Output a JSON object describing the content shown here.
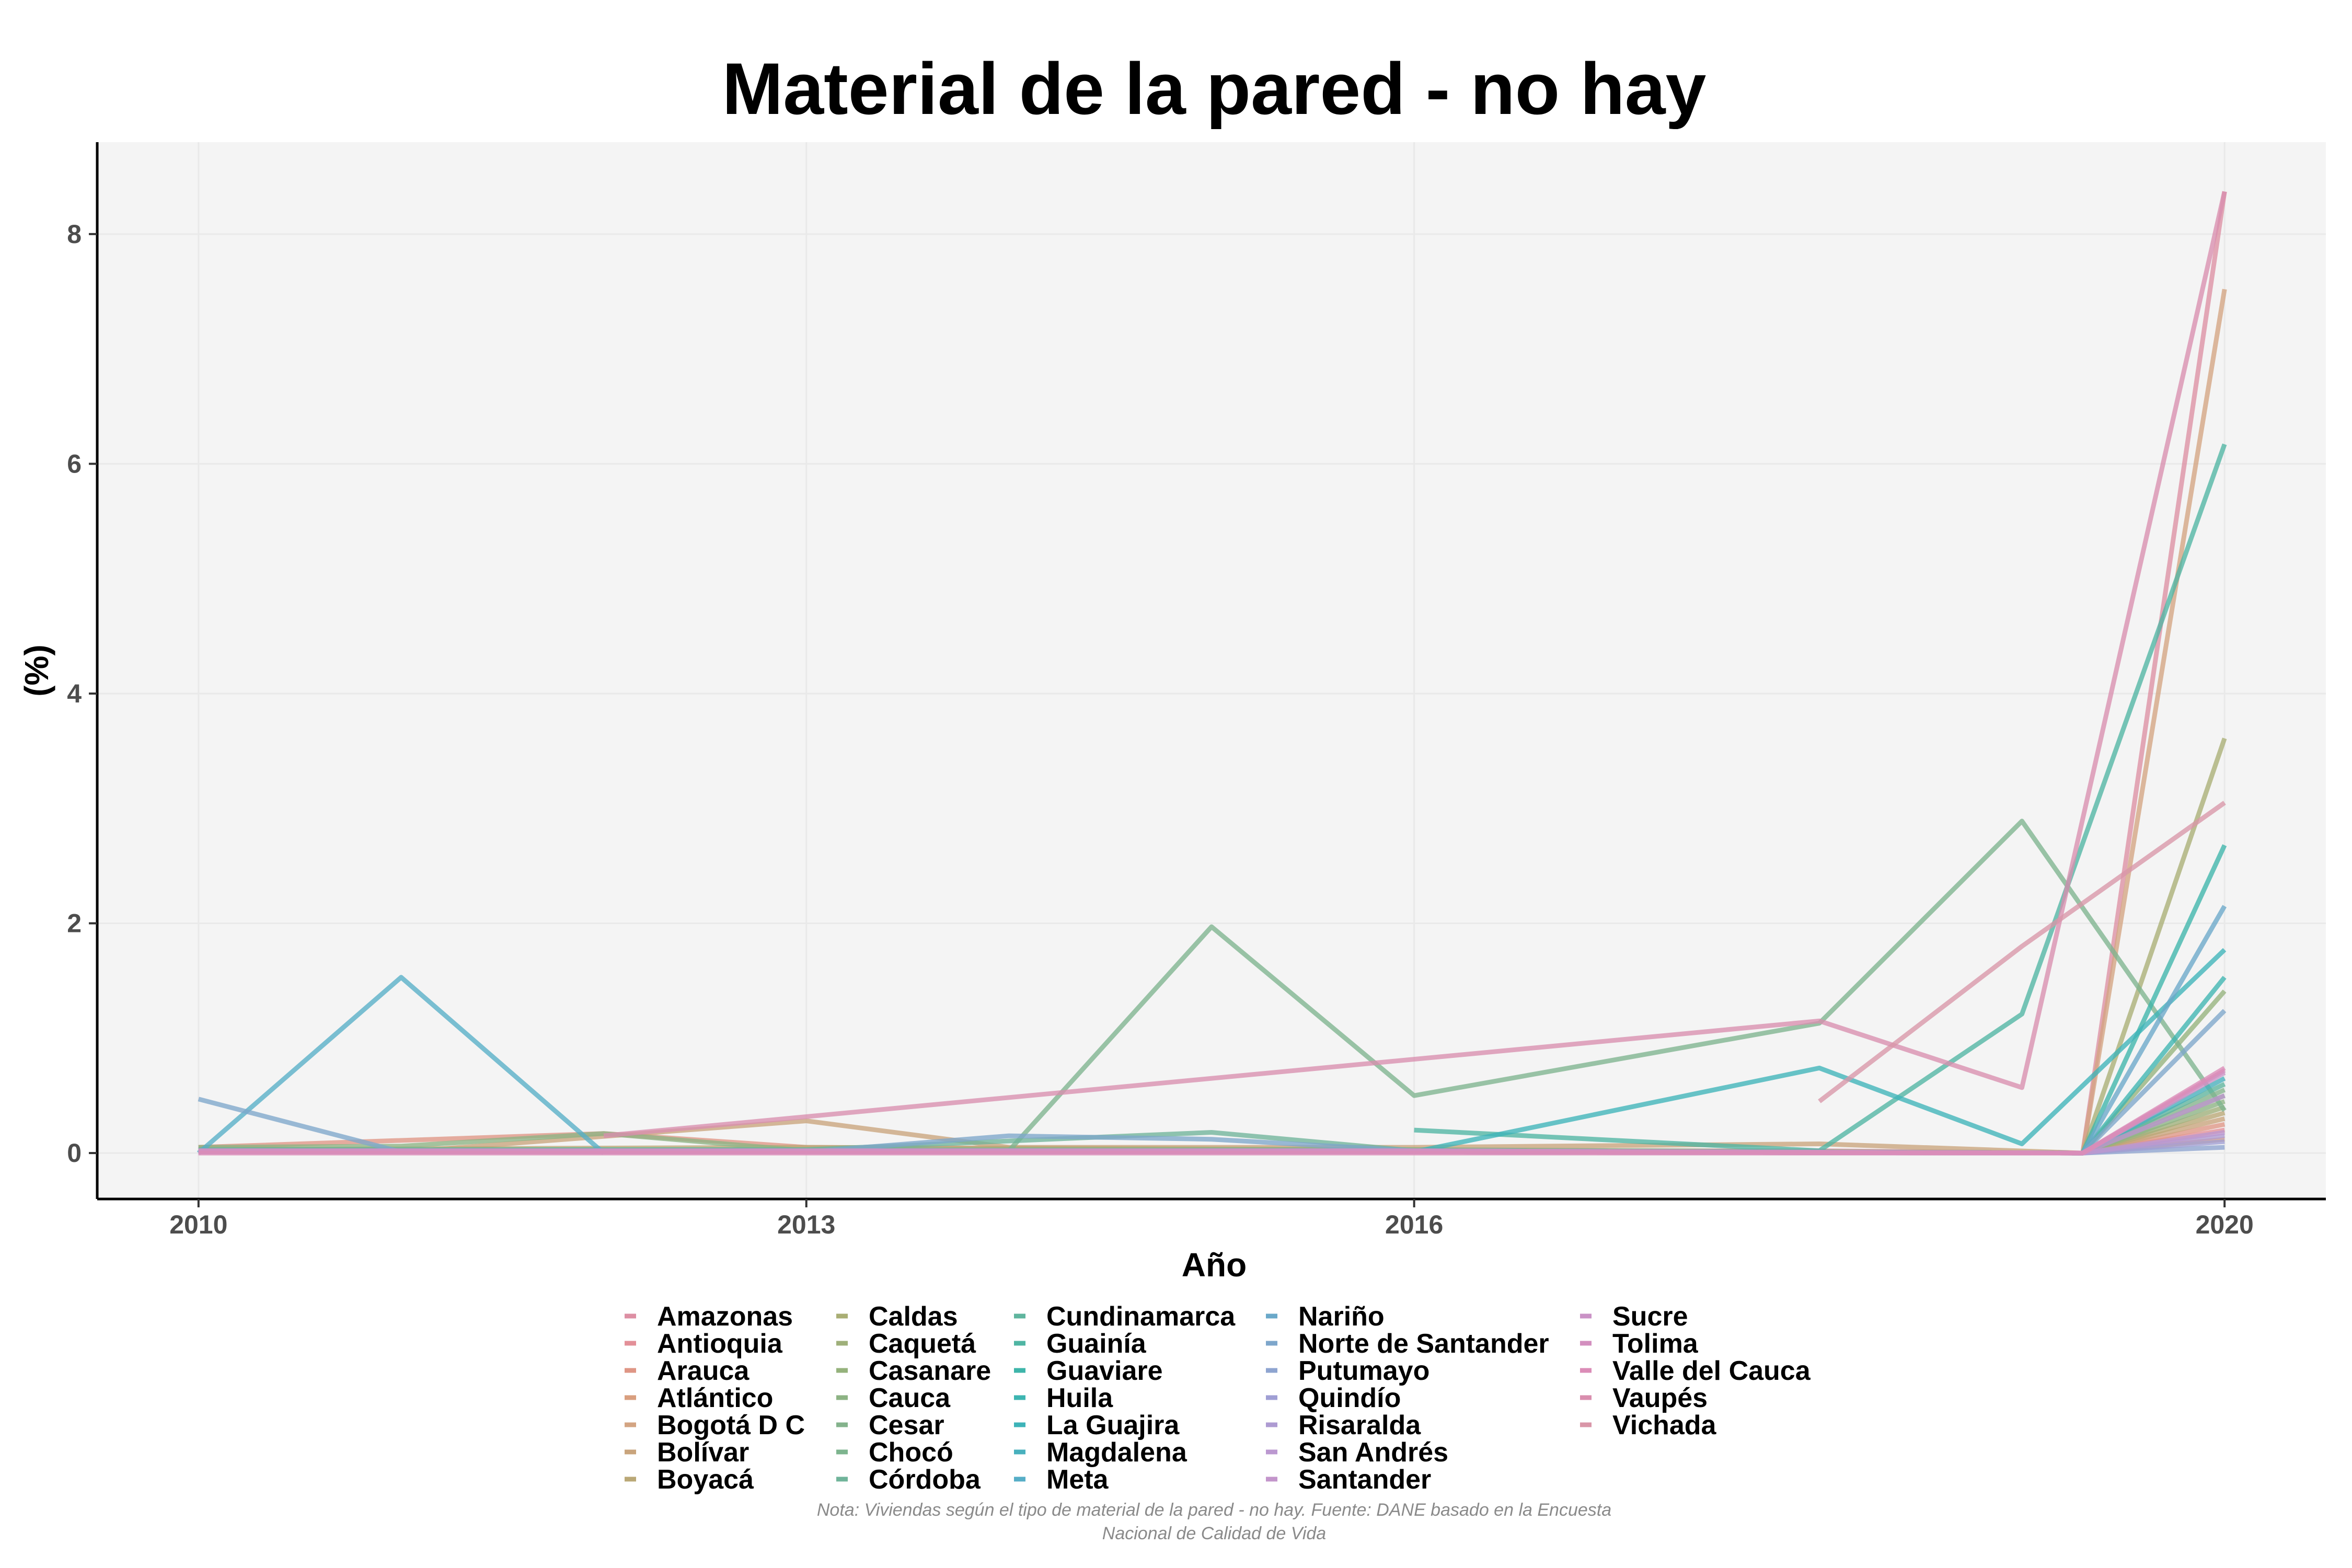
{
  "chart_data": {
    "type": "line",
    "title": "Material de la pared - no hay",
    "xlabel": "Año",
    "ylabel": "(%)",
    "xlim": [
      2009.5,
      2020.5
    ],
    "ylim": [
      -0.4,
      8.8
    ],
    "x_ticks": [
      2010,
      2013,
      2016,
      2020
    ],
    "y_ticks": [
      0,
      2,
      4,
      6,
      8
    ],
    "grid": true,
    "legend_position": "bottom",
    "note_lines": [
      "Nota: Viviendas según el tipo de material de la pared - no hay. Fuente: DANE basado en la Encuesta",
      "Nacional de Calidad de Vida"
    ],
    "series": [
      {
        "name": "Amazonas",
        "color": "#dd8fa3",
        "points": [
          [
            2010,
            0.02
          ],
          [
            2012,
            0.02
          ],
          [
            2018,
            0.02
          ],
          [
            2019.3,
            0
          ],
          [
            2020,
            8.37
          ]
        ]
      },
      {
        "name": "Antioquia",
        "color": "#e39098",
        "points": [
          [
            2010,
            0.02
          ],
          [
            2013,
            0.01
          ],
          [
            2016,
            0.01
          ],
          [
            2019.3,
            0
          ],
          [
            2020,
            0.2
          ]
        ]
      },
      {
        "name": "Arauca",
        "color": "#df9685",
        "points": [
          [
            2010,
            0.05
          ],
          [
            2012,
            0.17
          ],
          [
            2013,
            0.05
          ],
          [
            2016,
            0.02
          ],
          [
            2019.3,
            0
          ],
          [
            2020,
            0.25
          ]
        ]
      },
      {
        "name": "Atlántico",
        "color": "#d99f7f",
        "points": [
          [
            2010,
            0.02
          ],
          [
            2013,
            0.02
          ],
          [
            2016,
            0.02
          ],
          [
            2019.3,
            0
          ],
          [
            2020,
            0.12
          ]
        ]
      },
      {
        "name": "Bogotá D C",
        "color": "#d3a482",
        "points": [
          [
            2010,
            0.01
          ],
          [
            2013,
            0.01
          ],
          [
            2016,
            0.01
          ],
          [
            2019.3,
            0
          ],
          [
            2020,
            7.52
          ]
        ]
      },
      {
        "name": "Bolívar",
        "color": "#c9a47c",
        "points": [
          [
            2010,
            0.05
          ],
          [
            2011,
            0.01
          ],
          [
            2013,
            0.28
          ],
          [
            2014,
            0.05
          ],
          [
            2016,
            0.05
          ],
          [
            2018,
            0.08
          ],
          [
            2019.3,
            0
          ],
          [
            2020,
            0.3
          ]
        ]
      },
      {
        "name": "Boyacá",
        "color": "#baa876",
        "points": [
          [
            2010,
            0.03
          ],
          [
            2013,
            0.05
          ],
          [
            2016,
            0.03
          ],
          [
            2019.3,
            0
          ],
          [
            2020,
            0.35
          ]
        ]
      },
      {
        "name": "Caldas",
        "color": "#a9ae74",
        "points": [
          [
            2010,
            0.02
          ],
          [
            2013,
            0.02
          ],
          [
            2016,
            0.02
          ],
          [
            2019.3,
            0
          ],
          [
            2020,
            3.61
          ]
        ]
      },
      {
        "name": "Caquetá",
        "color": "#9fb07a",
        "points": [
          [
            2010,
            0.01
          ],
          [
            2013,
            0.01
          ],
          [
            2016,
            0.01
          ],
          [
            2019.3,
            0
          ],
          [
            2020,
            0.4
          ]
        ]
      },
      {
        "name": "Casanare",
        "color": "#95b27c",
        "points": [
          [
            2010,
            0.02
          ],
          [
            2013,
            0.02
          ],
          [
            2016,
            0.02
          ],
          [
            2019.3,
            0
          ],
          [
            2020,
            1.41
          ]
        ]
      },
      {
        "name": "Cauca",
        "color": "#8db384",
        "points": [
          [
            2010,
            0.05
          ],
          [
            2011,
            0.06
          ],
          [
            2012,
            0.17
          ],
          [
            2013,
            0.02
          ],
          [
            2016,
            0.02
          ],
          [
            2019.3,
            0
          ],
          [
            2020,
            0.45
          ]
        ]
      },
      {
        "name": "Cesar",
        "color": "#84b38c",
        "points": [
          [
            2010,
            0.03
          ],
          [
            2013,
            0.03
          ],
          [
            2016,
            0.03
          ],
          [
            2019.3,
            0
          ],
          [
            2020,
            0.55
          ]
        ]
      },
      {
        "name": "Chocó",
        "color": "#7db48e",
        "points": [
          [
            2014,
            0.02
          ],
          [
            2015,
            1.97
          ],
          [
            2016,
            0.5
          ],
          [
            2018,
            1.13
          ],
          [
            2019,
            2.89
          ],
          [
            2020,
            0.37
          ]
        ]
      },
      {
        "name": "Córdoba",
        "color": "#70b49a",
        "points": [
          [
            2010,
            0.03
          ],
          [
            2013,
            0.03
          ],
          [
            2015,
            0.18
          ],
          [
            2016,
            0.02
          ],
          [
            2019.3,
            0
          ],
          [
            2020,
            0.5
          ]
        ]
      },
      {
        "name": "Cundinamarca",
        "color": "#5fb59e",
        "points": [
          [
            2010,
            0.02
          ],
          [
            2013,
            0.02
          ],
          [
            2016,
            0.02
          ],
          [
            2019.3,
            0
          ],
          [
            2020,
            0.6
          ]
        ]
      },
      {
        "name": "Guainía",
        "color": "#4fb5a3",
        "points": [
          [
            2016,
            0.2
          ],
          [
            2018,
            0.02
          ],
          [
            2019,
            1.21
          ],
          [
            2020,
            6.17
          ]
        ]
      },
      {
        "name": "Guaviare",
        "color": "#3eb5aa",
        "points": [
          [
            2010,
            0.01
          ],
          [
            2013,
            0.01
          ],
          [
            2016,
            0.01
          ],
          [
            2019.3,
            0
          ],
          [
            2020,
            2.68
          ]
        ]
      },
      {
        "name": "Huila",
        "color": "#3db5b1",
        "points": [
          [
            2010,
            0.02
          ],
          [
            2013,
            0.02
          ],
          [
            2016,
            0.02
          ],
          [
            2019.3,
            0
          ],
          [
            2020,
            1.53
          ]
        ]
      },
      {
        "name": "La Guajira",
        "color": "#3db3b8",
        "points": [
          [
            2010,
            0.01
          ],
          [
            2013,
            0.01
          ],
          [
            2016,
            0.01
          ],
          [
            2018,
            0.74
          ],
          [
            2019,
            0.08
          ],
          [
            2020,
            1.77
          ]
        ]
      },
      {
        "name": "Magdalena",
        "color": "#48b0bd",
        "points": [
          [
            2010,
            0.02
          ],
          [
            2013,
            0.02
          ],
          [
            2016,
            0.02
          ],
          [
            2019.3,
            0
          ],
          [
            2020,
            0.65
          ]
        ]
      },
      {
        "name": "Meta",
        "color": "#56aec7",
        "points": [
          [
            2010,
            0.0
          ],
          [
            2011,
            1.53
          ],
          [
            2012,
            0.0
          ]
        ]
      },
      {
        "name": "Nariño",
        "color": "#6aa8c9",
        "points": [
          [
            2010,
            0.02
          ],
          [
            2013,
            0.02
          ],
          [
            2016,
            0.02
          ],
          [
            2019.3,
            0
          ],
          [
            2020,
            2.15
          ]
        ]
      },
      {
        "name": "Norte de Santander",
        "color": "#7da6cb",
        "points": [
          [
            2010,
            0.47
          ],
          [
            2011,
            0.01
          ],
          [
            2013,
            0.01
          ],
          [
            2014,
            0.15
          ],
          [
            2015,
            0.12
          ],
          [
            2016,
            0.02
          ],
          [
            2019.3,
            0
          ],
          [
            2020,
            1.24
          ]
        ]
      },
      {
        "name": "Putumayo",
        "color": "#8ea4d0",
        "points": [
          [
            2010,
            0.01
          ],
          [
            2013,
            0.01
          ],
          [
            2016,
            0.01
          ],
          [
            2019.3,
            0
          ],
          [
            2020,
            0.05
          ]
        ]
      },
      {
        "name": "Quindío",
        "color": "#a09fd4",
        "points": [
          [
            2010,
            0.01
          ],
          [
            2013,
            0.01
          ],
          [
            2016,
            0.01
          ],
          [
            2019.3,
            0
          ],
          [
            2020,
            0.1
          ]
        ]
      },
      {
        "name": "Risaralda",
        "color": "#ae9bd2",
        "points": [
          [
            2010,
            0.01
          ],
          [
            2013,
            0.01
          ],
          [
            2016,
            0.01
          ],
          [
            2019.3,
            0
          ],
          [
            2020,
            0.15
          ]
        ]
      },
      {
        "name": "San Andrés",
        "color": "#bb98d0",
        "points": [
          [
            2010,
            0.01
          ],
          [
            2013,
            0.01
          ],
          [
            2016,
            0.01
          ],
          [
            2019.3,
            0
          ],
          [
            2020,
            0.18
          ]
        ]
      },
      {
        "name": "Santander",
        "color": "#c395cb",
        "points": [
          [
            2010,
            0.02
          ],
          [
            2013,
            0.02
          ],
          [
            2016,
            0.02
          ],
          [
            2019.3,
            0
          ],
          [
            2020,
            0.5
          ]
        ]
      },
      {
        "name": "Sucre",
        "color": "#ca92c6",
        "points": [
          [
            2010,
            0.01
          ],
          [
            2013,
            0.01
          ],
          [
            2016,
            0.01
          ],
          [
            2019.3,
            0
          ],
          [
            2020,
            0.7
          ]
        ]
      },
      {
        "name": "Tolima",
        "color": "#d38fbf",
        "points": [
          [
            2010,
            0.02
          ],
          [
            2013,
            0.02
          ],
          [
            2016,
            0.02
          ],
          [
            2019.3,
            0
          ],
          [
            2020,
            0.72
          ]
        ]
      },
      {
        "name": "Valle del Cauca",
        "color": "#db8cb7",
        "points": [
          [
            2010,
            0.0
          ],
          [
            2013,
            0.0
          ],
          [
            2016,
            0.0
          ],
          [
            2019.3,
            0
          ],
          [
            2020,
            0.74
          ]
        ]
      },
      {
        "name": "Vaupés",
        "color": "#d98eae",
        "points": [
          [
            2012,
            0.15
          ],
          [
            2018,
            1.15
          ],
          [
            2019,
            0.57
          ],
          [
            2020,
            8.37
          ]
        ]
      },
      {
        "name": "Vichada",
        "color": "#d996a8",
        "points": [
          [
            2018,
            0.45
          ],
          [
            2019,
            1.8
          ],
          [
            2020,
            3.05
          ]
        ]
      }
    ]
  }
}
